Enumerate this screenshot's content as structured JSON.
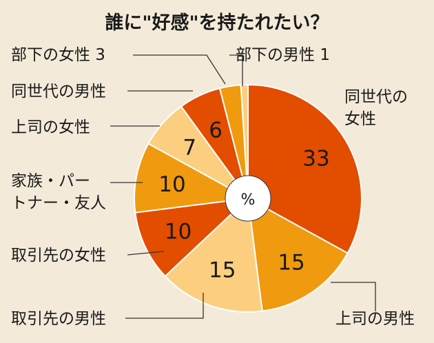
{
  "chart_data": {
    "type": "pie",
    "title": "誰に\"好感\"を持たれたい？",
    "center_label": "%",
    "slices": [
      {
        "label": "同世代の女性",
        "value": 33,
        "color": "#e34d00"
      },
      {
        "label": "上司の男性",
        "value": 15,
        "color": "#f09a10"
      },
      {
        "label": "取引先の男性",
        "value": 15,
        "color": "#fbcf7f"
      },
      {
        "label": "取引先の女性",
        "value": 10,
        "color": "#e34d00"
      },
      {
        "label": "家族・パートナー・友人",
        "value": 10,
        "color": "#f09a10"
      },
      {
        "label": "上司の女性",
        "value": 7,
        "color": "#fbcf7f"
      },
      {
        "label": "同世代の男性",
        "value": 6,
        "color": "#e34d00"
      },
      {
        "label": "部下の女性",
        "value": 3,
        "color": "#f09a10"
      },
      {
        "label": "部下の男性",
        "value": 1,
        "color": "#fbcf7f"
      }
    ],
    "callouts": [
      {
        "lines": [
          "同世代の",
          "女性"
        ]
      },
      {
        "lines": [
          "上司の男性"
        ]
      },
      {
        "lines": [
          "取引先の男性"
        ]
      },
      {
        "lines": [
          "取引先の女性"
        ]
      },
      {
        "lines": [
          "家族・パー",
          "トナー・友人"
        ]
      },
      {
        "lines": [
          "上司の女性"
        ]
      },
      {
        "lines": [
          "同世代の男性"
        ]
      },
      {
        "lines": [
          "部下の女性 3"
        ]
      },
      {
        "lines": [
          "部下の男性 1"
        ]
      }
    ]
  },
  "colors": {
    "background": "#f3ead9",
    "text": "#1a1a1a",
    "leader": "#333333",
    "slice_border": "#ffffff"
  }
}
